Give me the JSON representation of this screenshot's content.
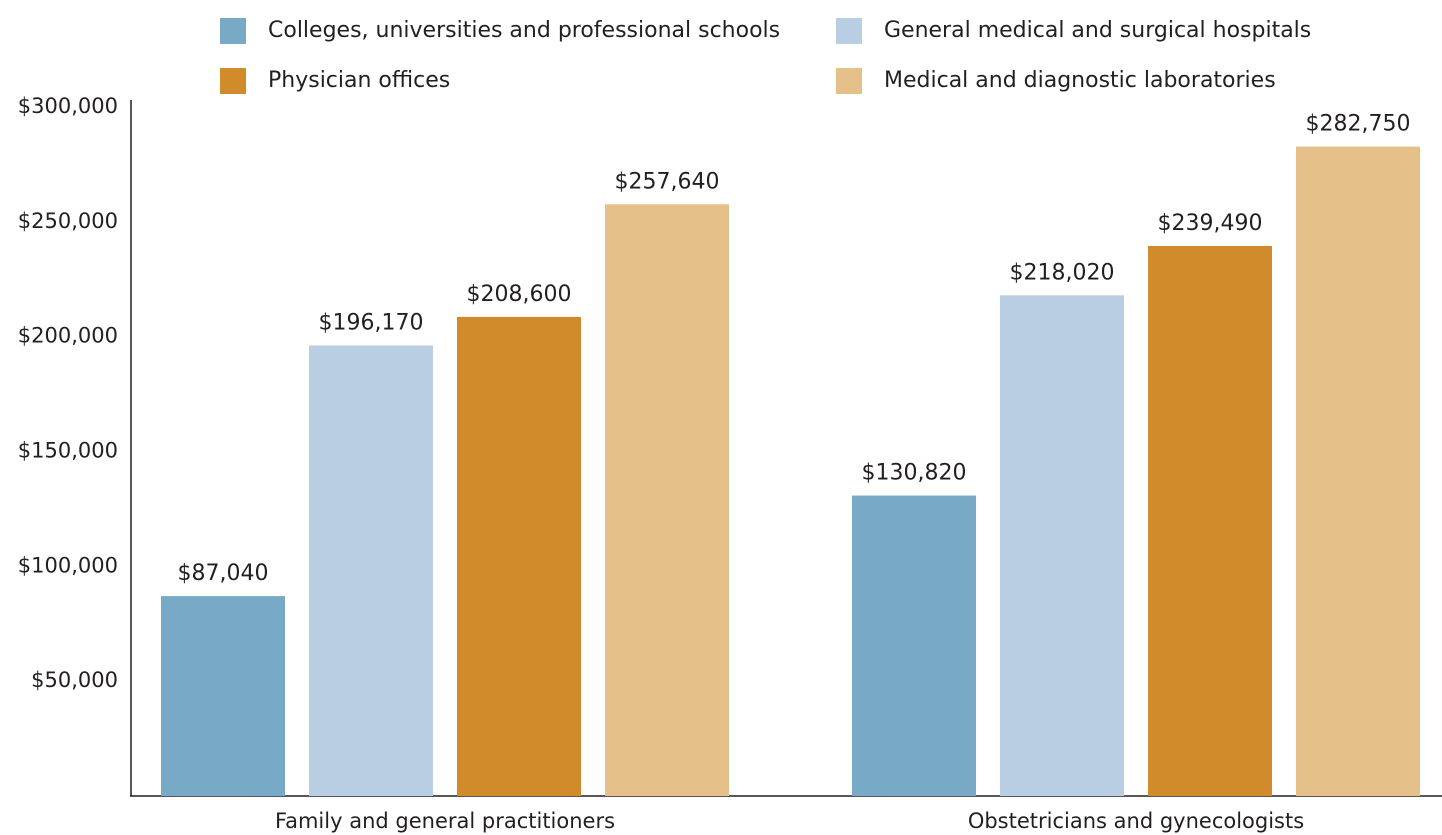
{
  "chart_data": {
    "type": "bar",
    "categories": [
      "Family and general practitioners",
      "Obstetricians and gynecologists"
    ],
    "series": [
      {
        "name": "Colleges, universities and professional schools",
        "color": "#78aac8",
        "values": [
          87040,
          130820
        ],
        "value_labels": [
          "$87,040",
          "$130,820"
        ]
      },
      {
        "name": "General medical and surgical hospitals",
        "color": "#bacee3",
        "values": [
          196170,
          218020
        ],
        "value_labels": [
          "$196,170",
          "$218,020"
        ]
      },
      {
        "name": "Physician offices",
        "color": "#d18b2a",
        "values": [
          208600,
          239490
        ],
        "value_labels": [
          "$208,600",
          "$239,490"
        ]
      },
      {
        "name": "Medical and diagnostic laboratories",
        "color": "#e6c089",
        "values": [
          257640,
          282750
        ],
        "value_labels": [
          "$257,640",
          "$282,750"
        ]
      }
    ],
    "ylim": [
      0,
      300000
    ],
    "yticks": [
      {
        "value": 50000,
        "label": "$50,000"
      },
      {
        "value": 100000,
        "label": "$100,000"
      },
      {
        "value": 150000,
        "label": "$150,000"
      },
      {
        "value": 200000,
        "label": "$200,000"
      },
      {
        "value": 250000,
        "label": "$250,000"
      },
      {
        "value": 300000,
        "label": "$300,000"
      }
    ],
    "legend": "top"
  }
}
